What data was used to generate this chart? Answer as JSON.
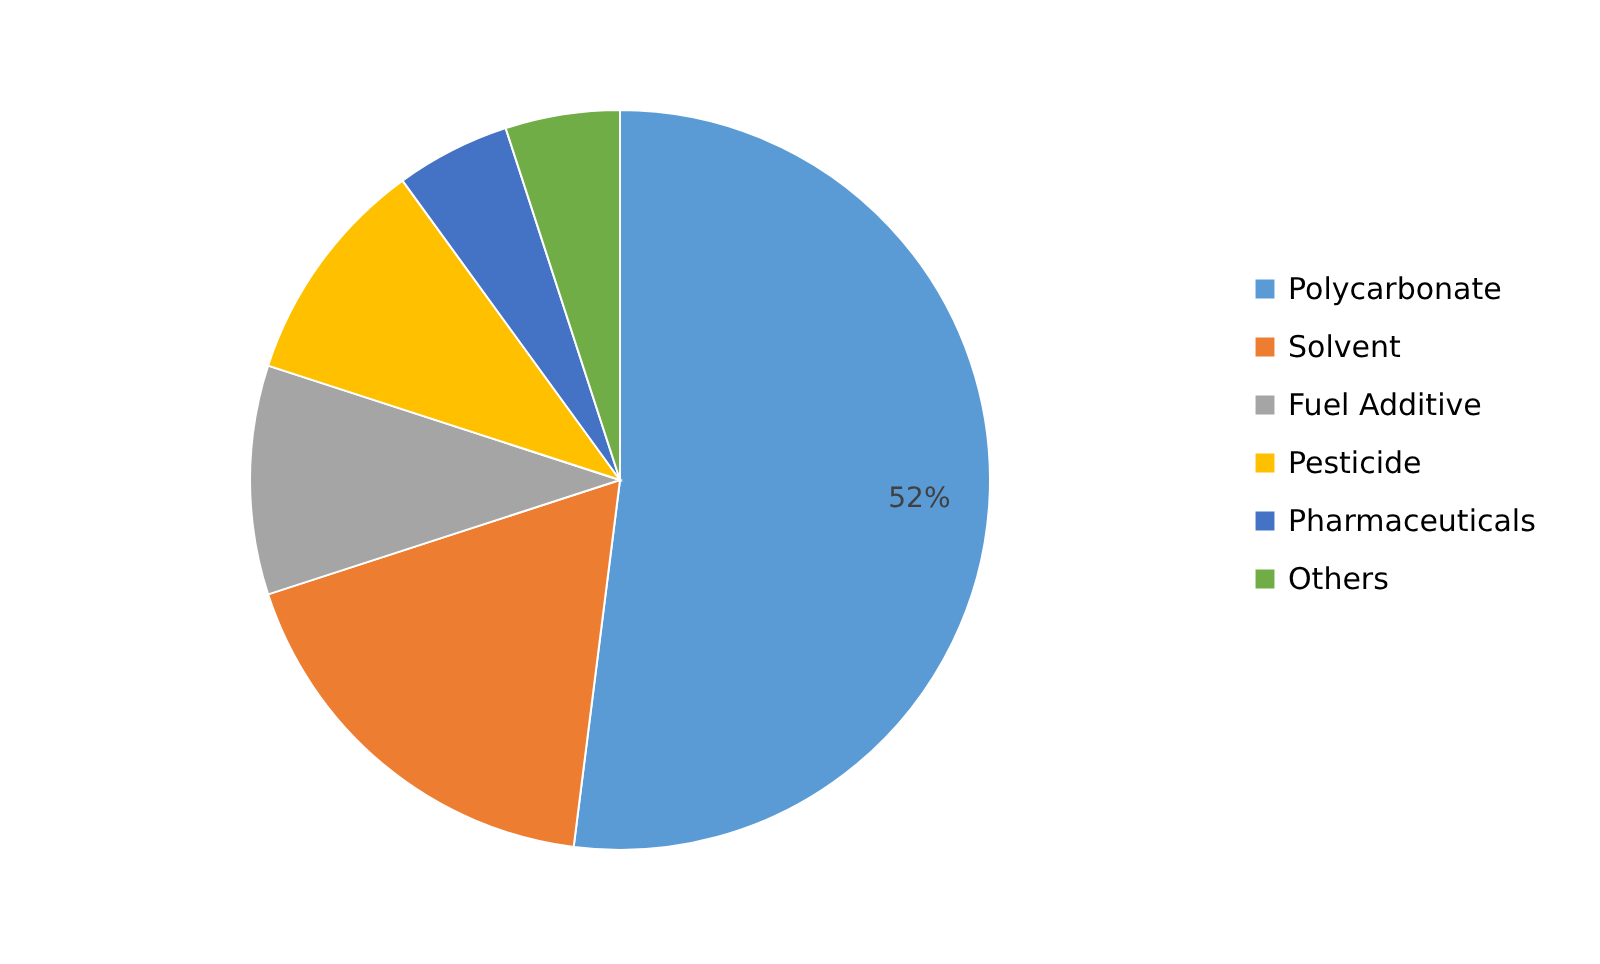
{
  "chart_data": {
    "type": "pie",
    "categories": [
      "Polycarbonate",
      "Solvent",
      "Fuel Additive",
      "Pesticide",
      "Pharmaceuticals",
      "Others"
    ],
    "values": [
      52,
      18,
      10,
      10,
      5,
      5
    ],
    "colors": [
      "#5b9bd5",
      "#ed7d31",
      "#a5a5a5",
      "#ffc000",
      "#4472c4",
      "#70ad47"
    ],
    "value_labels": [
      "52%",
      null,
      null,
      null,
      null,
      null
    ],
    "legend": "right"
  }
}
